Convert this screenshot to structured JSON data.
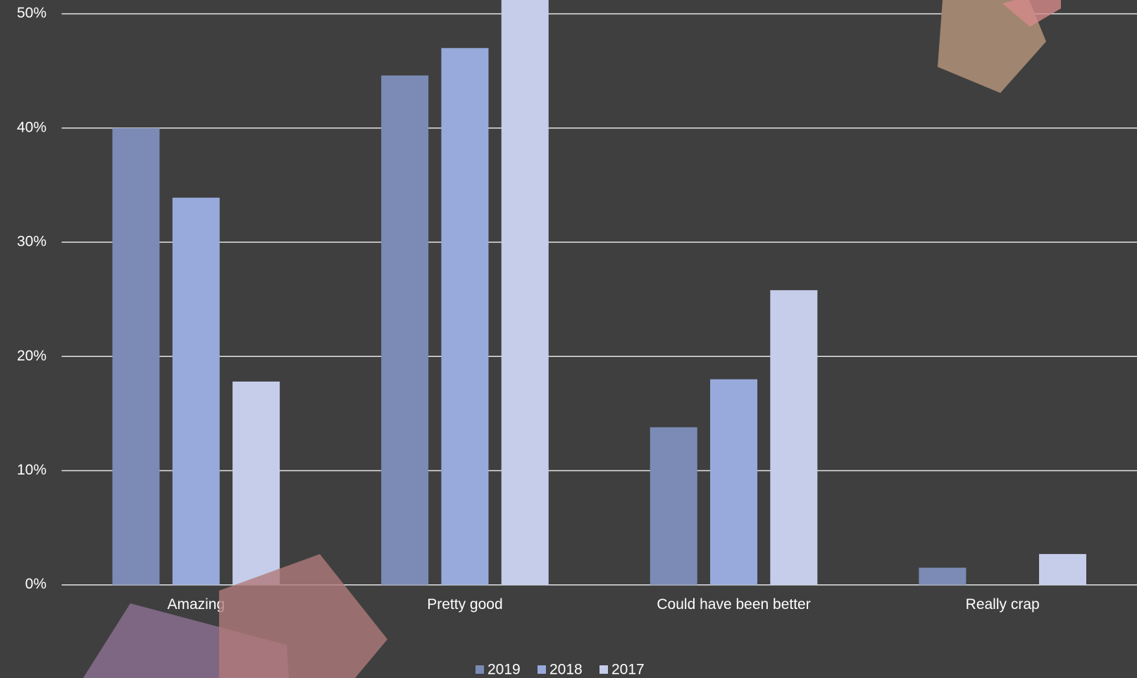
{
  "chart_data": {
    "type": "bar",
    "categories": [
      "Amazing",
      "Pretty good",
      "Could have been better",
      "Really crap"
    ],
    "series": [
      {
        "name": "2019",
        "color": "#7b8bb5",
        "values": [
          40.0,
          44.6,
          13.8,
          1.5
        ]
      },
      {
        "name": "2018",
        "color": "#98aadb",
        "values": [
          33.9,
          47.0,
          18.0,
          0
        ]
      },
      {
        "name": "2017",
        "color": "#c5cdea",
        "values": [
          17.8,
          53.7,
          25.8,
          2.7
        ]
      }
    ],
    "ylim": [
      0,
      50
    ],
    "yticks": [
      {
        "value": 0,
        "label": "0%"
      },
      {
        "value": 10,
        "label": "10%"
      },
      {
        "value": 20,
        "label": "20%"
      },
      {
        "value": 30,
        "label": "30%"
      },
      {
        "value": 40,
        "label": "40%"
      },
      {
        "value": 50,
        "label": "50%"
      }
    ],
    "grid": true,
    "legend": "bottom"
  }
}
